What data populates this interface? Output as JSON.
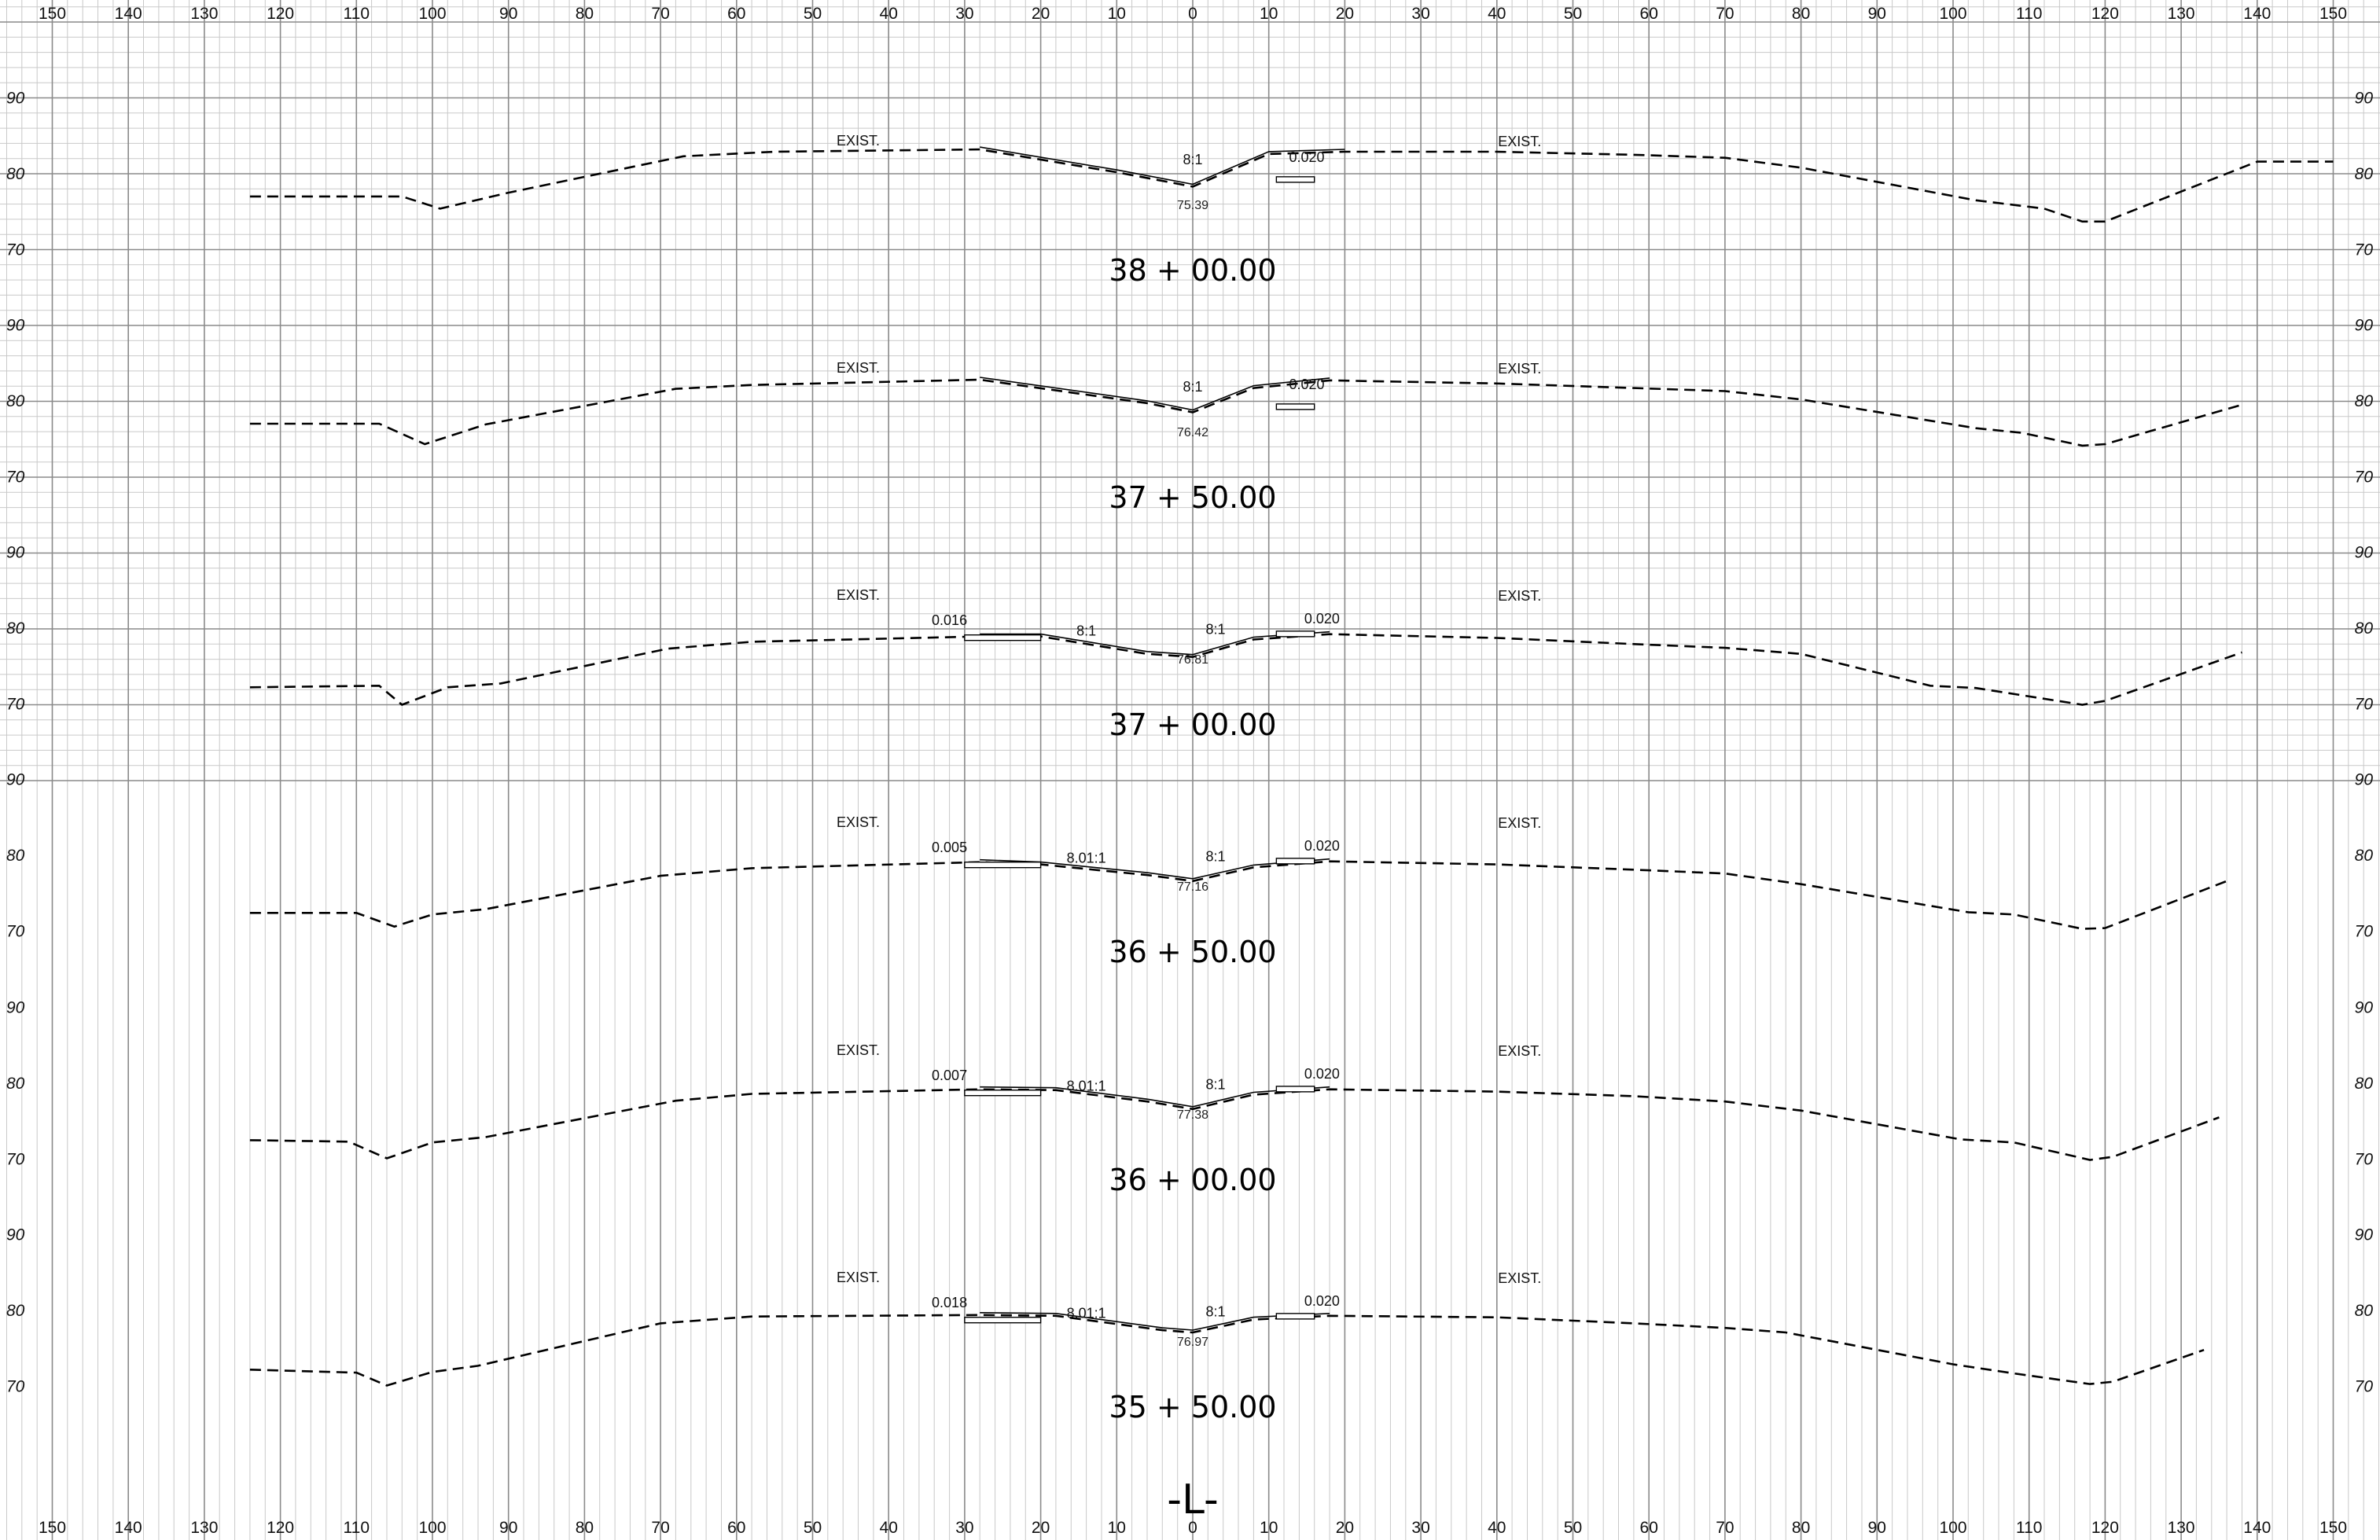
{
  "grid": {
    "offset_ticks": [
      "150",
      "140",
      "130",
      "120",
      "110",
      "100",
      "90",
      "80",
      "70",
      "60",
      "50",
      "40",
      "30",
      "20",
      "10",
      "0",
      "10",
      "20",
      "30",
      "40",
      "50",
      "60",
      "70",
      "80",
      "90",
      "100",
      "110",
      "120",
      "130",
      "140",
      "150"
    ],
    "elevation_ticks": [
      "90",
      "80",
      "70"
    ]
  },
  "sections": [
    {
      "station": "38 + 00.00",
      "labels": {
        "exist_left": "EXIST.",
        "exist_right": "EXIST.",
        "slope_1": "8:1",
        "cross_right": "0.020",
        "center_elev": "75.39"
      },
      "profile": [
        [
          -124,
          77
        ],
        [
          -104,
          77
        ],
        [
          -99,
          75.4
        ],
        [
          -90,
          77.5
        ],
        [
          -67,
          82.3
        ],
        [
          -55,
          82.9
        ],
        [
          -28,
          83.2
        ],
        [
          -10,
          80.2
        ],
        [
          0,
          78.3
        ],
        [
          10,
          82.6
        ],
        [
          20,
          82.9
        ],
        [
          40,
          82.9
        ],
        [
          58,
          82.5
        ],
        [
          70,
          82.1
        ],
        [
          80,
          80.8
        ],
        [
          103,
          76.5
        ],
        [
          112,
          75.4
        ],
        [
          117,
          73.7
        ],
        [
          120,
          73.7
        ],
        [
          140,
          81.6
        ],
        [
          150,
          81.6
        ]
      ]
    },
    {
      "station": "37 + 50.00",
      "labels": {
        "exist_left": "EXIST.",
        "exist_right": "EXIST.",
        "slope_1": "8:1",
        "cross_right": "0.020",
        "center_elev": "76.42"
      },
      "profile": [
        [
          -124,
          77
        ],
        [
          -107,
          77
        ],
        [
          -101,
          74.3
        ],
        [
          -93,
          76.9
        ],
        [
          -68,
          81.6
        ],
        [
          -58,
          82.1
        ],
        [
          -28,
          82.8
        ],
        [
          -6,
          79.7
        ],
        [
          0,
          78.5
        ],
        [
          8,
          81.7
        ],
        [
          18,
          82.7
        ],
        [
          40,
          82.3
        ],
        [
          58,
          81.7
        ],
        [
          70,
          81.3
        ],
        [
          80,
          80.2
        ],
        [
          103,
          76.4
        ],
        [
          109,
          75.8
        ],
        [
          117,
          74.1
        ],
        [
          120,
          74.3
        ],
        [
          138,
          79.5
        ]
      ]
    },
    {
      "station": "37 + 00.00",
      "labels": {
        "exist_left": "EXIST.",
        "exist_right": "EXIST.",
        "slope_1": "8:1",
        "slope_2": "8:1",
        "cross_left": "0.016",
        "cross_right": "0.020",
        "center_elev": "76.81"
      },
      "profile": [
        [
          -124,
          72.2
        ],
        [
          -107,
          72.4
        ],
        [
          -104,
          69.9
        ],
        [
          -98,
          72.2
        ],
        [
          -91,
          72.7
        ],
        [
          -69,
          77.3
        ],
        [
          -58,
          78.2
        ],
        [
          -28,
          78.9
        ],
        [
          -20,
          78.9
        ],
        [
          -6,
          76.6
        ],
        [
          0,
          76.2
        ],
        [
          8,
          78.5
        ],
        [
          18,
          79.2
        ],
        [
          40,
          78.7
        ],
        [
          58,
          77.9
        ],
        [
          70,
          77.4
        ],
        [
          80,
          76.6
        ],
        [
          97,
          72.4
        ],
        [
          103,
          72.1
        ],
        [
          117,
          69.9
        ],
        [
          120,
          70.4
        ],
        [
          138,
          76.8
        ]
      ]
    },
    {
      "station": "36 + 50.00",
      "labels": {
        "exist_left": "EXIST.",
        "exist_right": "EXIST.",
        "slope_1": "8.01:1",
        "slope_2": "8:1",
        "cross_left": "0.005",
        "cross_right": "0.020",
        "center_elev": "77.16"
      },
      "profile": [
        [
          -124,
          72.4
        ],
        [
          -110,
          72.4
        ],
        [
          -105,
          70.6
        ],
        [
          -100,
          72.2
        ],
        [
          -93,
          72.9
        ],
        [
          -70,
          77.3
        ],
        [
          -58,
          78.3
        ],
        [
          -28,
          79.1
        ],
        [
          -20,
          78.8
        ],
        [
          -6,
          77.4
        ],
        [
          0,
          76.6
        ],
        [
          8,
          78.4
        ],
        [
          18,
          79.2
        ],
        [
          40,
          78.8
        ],
        [
          58,
          78.1
        ],
        [
          70,
          77.6
        ],
        [
          80,
          76.2
        ],
        [
          102,
          72.5
        ],
        [
          108,
          72.2
        ],
        [
          117,
          70.3
        ],
        [
          120,
          70.4
        ],
        [
          136,
          76.6
        ]
      ]
    },
    {
      "station": "36 + 00.00",
      "labels": {
        "exist_left": "EXIST.",
        "exist_right": "EXIST.",
        "slope_1": "8.01:1",
        "slope_2": "8:1",
        "cross_left": "0.007",
        "cross_right": "0.020",
        "center_elev": "77.38"
      },
      "profile": [
        [
          -124,
          72.5
        ],
        [
          -111,
          72.3
        ],
        [
          -106,
          70.1
        ],
        [
          -100,
          72.2
        ],
        [
          -93,
          72.9
        ],
        [
          -68,
          77.7
        ],
        [
          -58,
          78.6
        ],
        [
          -28,
          79.2
        ],
        [
          -18,
          79.1
        ],
        [
          -6,
          77.6
        ],
        [
          0,
          76.6
        ],
        [
          8,
          78.5
        ],
        [
          18,
          79.2
        ],
        [
          40,
          78.9
        ],
        [
          58,
          78.3
        ],
        [
          70,
          77.6
        ],
        [
          80,
          76.4
        ],
        [
          101,
          72.6
        ],
        [
          108,
          72.2
        ],
        [
          118,
          69.9
        ],
        [
          121,
          70.3
        ],
        [
          135,
          75.5
        ]
      ]
    },
    {
      "station": "35 + 50.00",
      "labels": {
        "exist_left": "EXIST.",
        "exist_right": "EXIST.",
        "slope_1": "8.01:1",
        "slope_2": "8:1",
        "cross_left": "0.018",
        "cross_right": "0.020",
        "center_elev": "76.97"
      },
      "profile": [
        [
          -124,
          72.2
        ],
        [
          -110,
          71.8
        ],
        [
          -106,
          70.1
        ],
        [
          -100,
          71.9
        ],
        [
          -94,
          72.7
        ],
        [
          -70,
          78.3
        ],
        [
          -58,
          79.2
        ],
        [
          -28,
          79.4
        ],
        [
          -18,
          79.3
        ],
        [
          -4,
          77.4
        ],
        [
          0,
          77.1
        ],
        [
          8,
          78.8
        ],
        [
          18,
          79.3
        ],
        [
          40,
          79.1
        ],
        [
          58,
          78.3
        ],
        [
          70,
          77.7
        ],
        [
          78,
          77.1
        ],
        [
          100,
          72.9
        ],
        [
          108,
          71.7
        ],
        [
          118,
          70.3
        ],
        [
          121,
          70.6
        ],
        [
          133,
          74.8
        ]
      ]
    }
  ],
  "footer": {
    "alignment_label": "-L-"
  }
}
